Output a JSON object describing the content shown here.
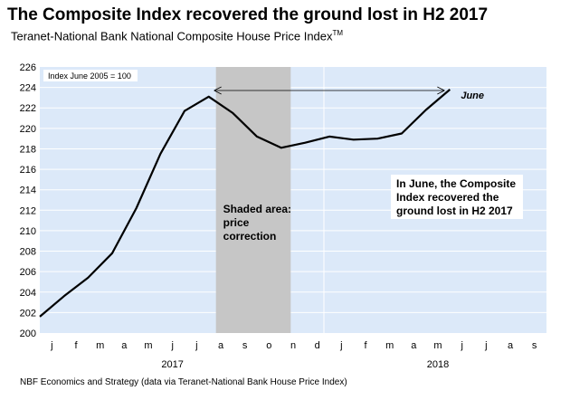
{
  "title": "The Composite Index recovered the ground lost in H2 2017",
  "subtitle": "Teranet-National Bank National Composite House Price Index",
  "subtitle_sup": "TM",
  "footer": "NBF Economics and Strategy (data via Teranet-National Bank House Price Index)",
  "colors": {
    "plot_bg": "#dce9f9",
    "shaded_band": "#c6c6c6",
    "line": "#000000",
    "grid": "#ffffff"
  },
  "chart_data": {
    "type": "line",
    "index_note": "Index June 2005 = 100",
    "months": [
      "j",
      "f",
      "m",
      "a",
      "m",
      "j",
      "j",
      "a",
      "s",
      "o",
      "n",
      "d",
      "j",
      "f",
      "m",
      "a",
      "m",
      "j",
      "j",
      "a",
      "s"
    ],
    "year_labels": [
      {
        "label": "2017",
        "at_month": 5
      },
      {
        "label": "2018",
        "at_month": 16
      }
    ],
    "ylim": [
      200,
      226
    ],
    "yticks": [
      200,
      202,
      204,
      206,
      208,
      210,
      212,
      214,
      216,
      218,
      220,
      222,
      224,
      226
    ],
    "grid": true,
    "shaded_region": {
      "from_month": 7,
      "to_month": 10,
      "label_lines": [
        "Shaded area:",
        "price",
        "correction"
      ]
    },
    "arrow": {
      "from_month": 7,
      "to_month": 17
    },
    "series": [
      {
        "x": [
          0,
          1,
          2,
          3,
          4,
          5,
          6,
          7,
          8,
          9,
          10,
          11,
          12,
          13,
          14,
          15,
          16,
          17
        ],
        "values": [
          201.6,
          203.6,
          205.4,
          207.8,
          212.2,
          217.5,
          221.7,
          223.1,
          221.5,
          219.2,
          218.1,
          218.6,
          219.2,
          218.9,
          219.0,
          219.5,
          221.8,
          223.8
        ]
      }
    ],
    "annotations": {
      "end_label": "June",
      "callout_lines": [
        "In June, the Composite",
        "Index recovered the",
        "ground lost in H2 2017"
      ]
    }
  }
}
